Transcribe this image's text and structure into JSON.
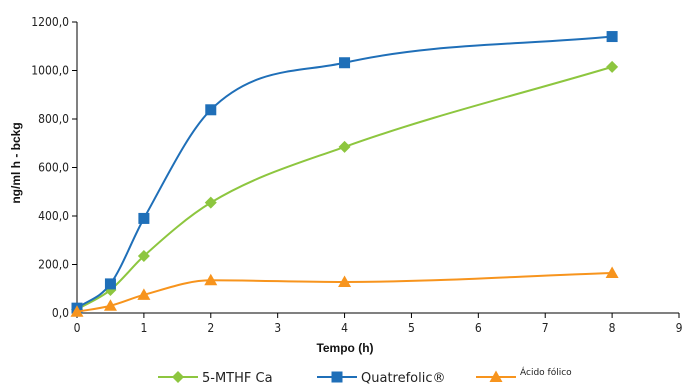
{
  "chart_data": {
    "type": "line",
    "xlabel": "Tempo (h)",
    "ylabel": "ng/ml h - bckg",
    "xlim": [
      0,
      9
    ],
    "ylim": [
      0,
      1200
    ],
    "x_ticks": [
      "0",
      "1",
      "2",
      "3",
      "4",
      "5",
      "6",
      "7",
      "8",
      "9"
    ],
    "y_ticks": [
      "0,0",
      "200,0",
      "400,0",
      "600,0",
      "800,0",
      "1000,0",
      "1200,0"
    ],
    "grid": false,
    "legend_position": "bottom",
    "series": [
      {
        "name": "5-MTHF Ca",
        "color": "#8dc63f",
        "marker": "diamond",
        "x": [
          0,
          0.5,
          1,
          2,
          4,
          8
        ],
        "y": [
          15,
          95,
          235,
          455,
          685,
          1015
        ]
      },
      {
        "name": "Quatrefolic®",
        "color": "#1f6fb8",
        "marker": "square",
        "x": [
          0,
          0.5,
          1,
          2,
          4,
          8
        ],
        "y": [
          20,
          120,
          390,
          838,
          1032,
          1140
        ]
      },
      {
        "name": "Ácido fólico",
        "color": "#f7941d",
        "marker": "triangle",
        "x": [
          0,
          0.5,
          1,
          2,
          4,
          8
        ],
        "y": [
          5,
          30,
          75,
          135,
          128,
          165
        ]
      }
    ]
  }
}
